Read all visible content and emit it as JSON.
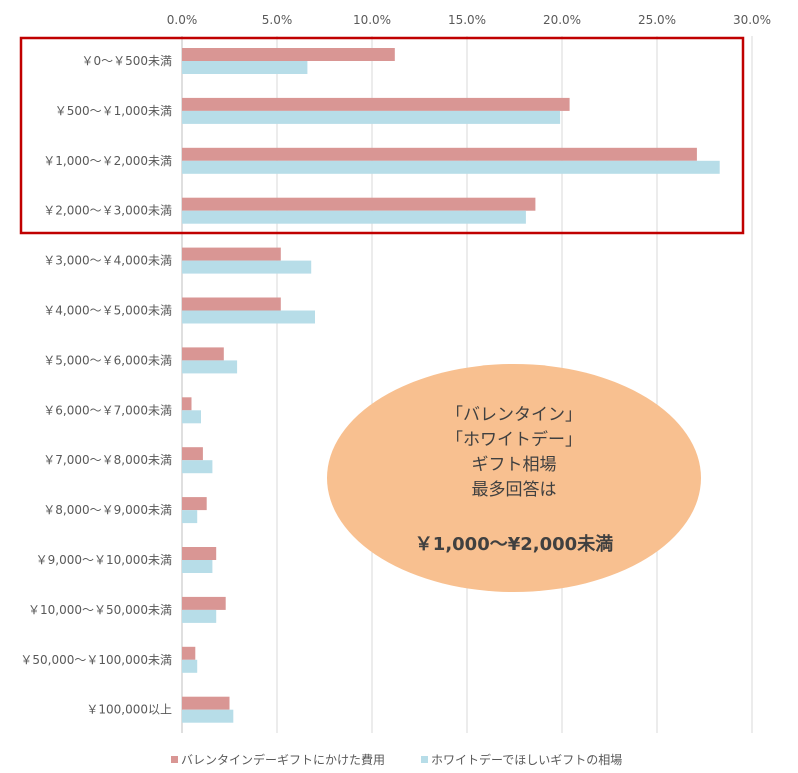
{
  "chart_data": {
    "type": "bar",
    "orientation": "horizontal",
    "categories": [
      "￥0～￥500未満",
      "￥500～￥1,000未満",
      "￥1,000～￥2,000未満",
      "￥2,000～￥3,000未満",
      "￥3,000～￥4,000未満",
      "￥4,000～￥5,000未満",
      "￥5,000～￥6,000未満",
      "￥6,000～￥7,000未満",
      "￥7,000～￥8,000未満",
      "￥8,000～￥9,000未満",
      "￥9,000～￥10,000未満",
      "￥10,000～￥50,000未満",
      "￥50,000～￥100,000未満",
      "￥100,000以上"
    ],
    "series": [
      {
        "name": "バレンタインデーギフトにかけた費用",
        "color": "#d99694",
        "values": [
          11.2,
          20.4,
          27.1,
          18.6,
          5.2,
          5.2,
          2.2,
          0.5,
          1.1,
          1.3,
          1.8,
          2.3,
          0.7,
          2.5
        ]
      },
      {
        "name": "ホワイトデーでほしいギフトの相場",
        "color": "#b7dde8",
        "values": [
          6.6,
          19.9,
          28.3,
          18.1,
          6.8,
          7.0,
          2.9,
          1.0,
          1.6,
          0.8,
          1.6,
          1.8,
          0.8,
          2.7
        ]
      }
    ],
    "x_ticks": [
      "0.0%",
      "5.0%",
      "10.0%",
      "15.0%",
      "20.0%",
      "25.0%",
      "30.0%"
    ],
    "xlim": [
      0,
      30
    ],
    "x_axis_position": "top",
    "grid": true,
    "legend_position": "bottom",
    "highlight_box_categories": [
      0,
      3
    ],
    "highlight_color": "#c00000",
    "callout": {
      "shape": "ellipse",
      "fill": "#f8c090",
      "lines": [
        "「バレンタイン」",
        "「ホワイトデー」",
        "ギフト相場",
        "最多回答は"
      ],
      "emphasis": "￥1,000～¥2,000未満"
    }
  }
}
